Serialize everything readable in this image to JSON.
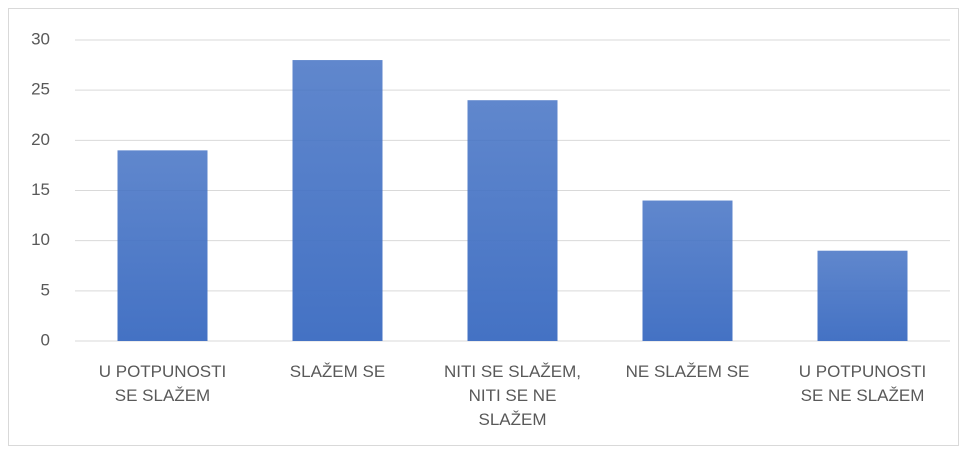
{
  "chart_data": {
    "type": "bar",
    "categories": [
      "U POTPUNOSTI SE SLAŽEM",
      "SLAŽEM SE",
      "NITI SE SLAŽEM, NITI SE NE SLAŽEM",
      "NE SLAŽEM SE",
      "U POTPUNOSTI SE NE SLAŽEM"
    ],
    "values": [
      19,
      28,
      24,
      14,
      9
    ],
    "color": "#4472c4",
    "ylim": [
      0,
      30
    ],
    "yticks": [
      0,
      5,
      10,
      15,
      20,
      25,
      30
    ],
    "grid": true
  }
}
